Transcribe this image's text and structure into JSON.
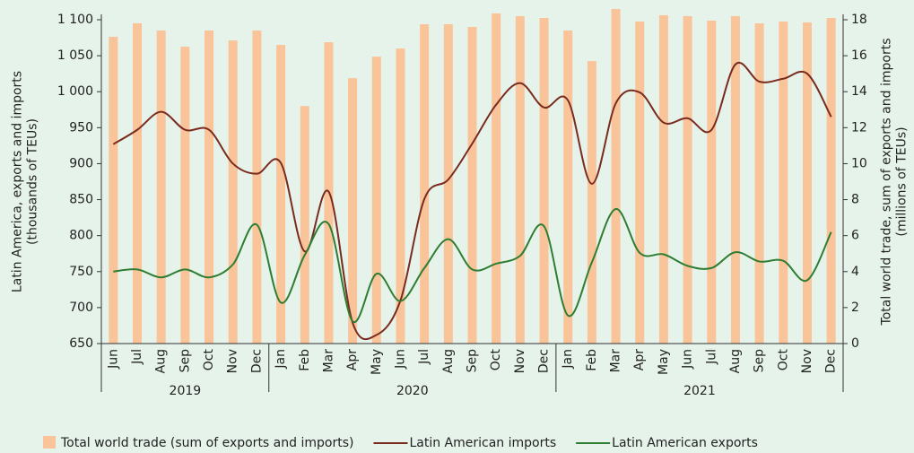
{
  "chart_data": {
    "type": "bar-line",
    "categories": [
      "Jun",
      "Jul",
      "Aug",
      "Sep",
      "Oct",
      "Nov",
      "Dec",
      "Jan",
      "Feb",
      "Mar",
      "Apr",
      "May",
      "Jun",
      "Jul",
      "Aug",
      "Sep",
      "Oct",
      "Nov",
      "Dec",
      "Jan",
      "Feb",
      "Mar",
      "Apr",
      "May",
      "Jun",
      "Jul",
      "Aug",
      "Sep",
      "Oct",
      "Nov",
      "Dec"
    ],
    "year_labels": [
      "2019",
      "2020",
      "2021"
    ],
    "ylabel": "Latin America, exports and imports\n(thousands of TEUs)",
    "y2label": "Total world trade, sum of exports and imports\n(millions of TEUs)",
    "ylim": [
      650,
      1100
    ],
    "yticks": [
      650,
      700,
      750,
      800,
      850,
      900,
      950,
      {
        "value": 1000,
        "label": "1 000"
      },
      {
        "value": 1050,
        "label": "1 050"
      },
      {
        "value": 1100,
        "label": "1 100"
      }
    ],
    "y2lim": [
      0,
      18
    ],
    "y2ticks": [
      0,
      2,
      4,
      6,
      8,
      10,
      12,
      14,
      16,
      18
    ],
    "series": [
      {
        "name": "Total world trade (sum of exports and imports)",
        "kind": "bar",
        "axis": "y2",
        "color": "#f9c49a",
        "values": [
          17.05,
          17.8,
          17.4,
          16.5,
          17.4,
          16.85,
          17.4,
          16.6,
          13.2,
          16.75,
          14.75,
          15.95,
          16.4,
          17.75,
          17.75,
          17.6,
          18.35,
          18.2,
          18.1,
          17.4,
          15.7,
          18.6,
          17.9,
          18.25,
          18.2,
          17.95,
          18.2,
          17.8,
          17.9,
          17.85,
          18.1
        ]
      },
      {
        "name": "Latin American imports",
        "kind": "line",
        "axis": "y",
        "color": "#7b2a1e",
        "values": [
          927,
          947,
          972,
          947,
          947,
          900,
          886,
          901,
          778,
          861,
          679,
          662,
          710,
          851,
          878,
          928,
          982,
          1012,
          978,
          988,
          872,
          984,
          999,
          957,
          963,
          947,
          1038,
          1014,
          1018,
          1025,
          965
        ]
      },
      {
        "name": "Latin American exports",
        "kind": "line",
        "axis": "y",
        "color": "#2e7d32",
        "values": [
          750,
          753,
          742,
          753,
          742,
          760,
          815,
          707,
          773,
          816,
          681,
          747,
          709,
          755,
          795,
          753,
          761,
          772,
          813,
          689,
          763,
          837,
          776,
          774,
          758,
          755,
          777,
          764,
          765,
          738,
          805
        ]
      }
    ]
  }
}
